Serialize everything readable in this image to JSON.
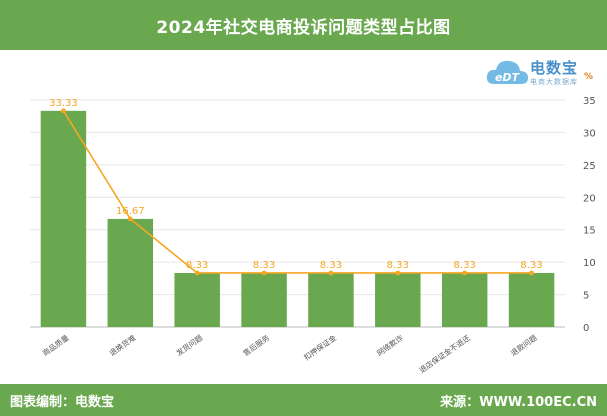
{
  "header": {
    "title": "2024年社交电商投诉问题类型占比图"
  },
  "logo": {
    "name": "电数宝",
    "sub": "电商大数据库",
    "badge": "%",
    "mark": "eDT"
  },
  "footer": {
    "left": "图表编制：电数宝",
    "right": "来源：WWW.100EC.CN"
  },
  "colors": {
    "bar": "#6aa84f",
    "line": "#f5a623",
    "header": "#6aa84f",
    "label": "#f5a623"
  },
  "chart_data": {
    "type": "bar",
    "categories": [
      "商品质量",
      "退换货难",
      "发货问题",
      "售后服务",
      "扣押保证金",
      "网络欺诈",
      "退店保证金不退还",
      "退款问题"
    ],
    "values": [
      33.33,
      16.67,
      8.33,
      8.33,
      8.33,
      8.33,
      8.33,
      8.33
    ],
    "data_labels": [
      "33.33",
      "16.67",
      "8.33",
      "8.33",
      "8.33",
      "8.33",
      "8.33",
      "8.33"
    ],
    "line_overlay": true,
    "ylim": [
      0,
      35
    ],
    "yticks": [
      0,
      5,
      10,
      15,
      20,
      25,
      30,
      35
    ],
    "y_axis_side": "right",
    "grid": true
  }
}
